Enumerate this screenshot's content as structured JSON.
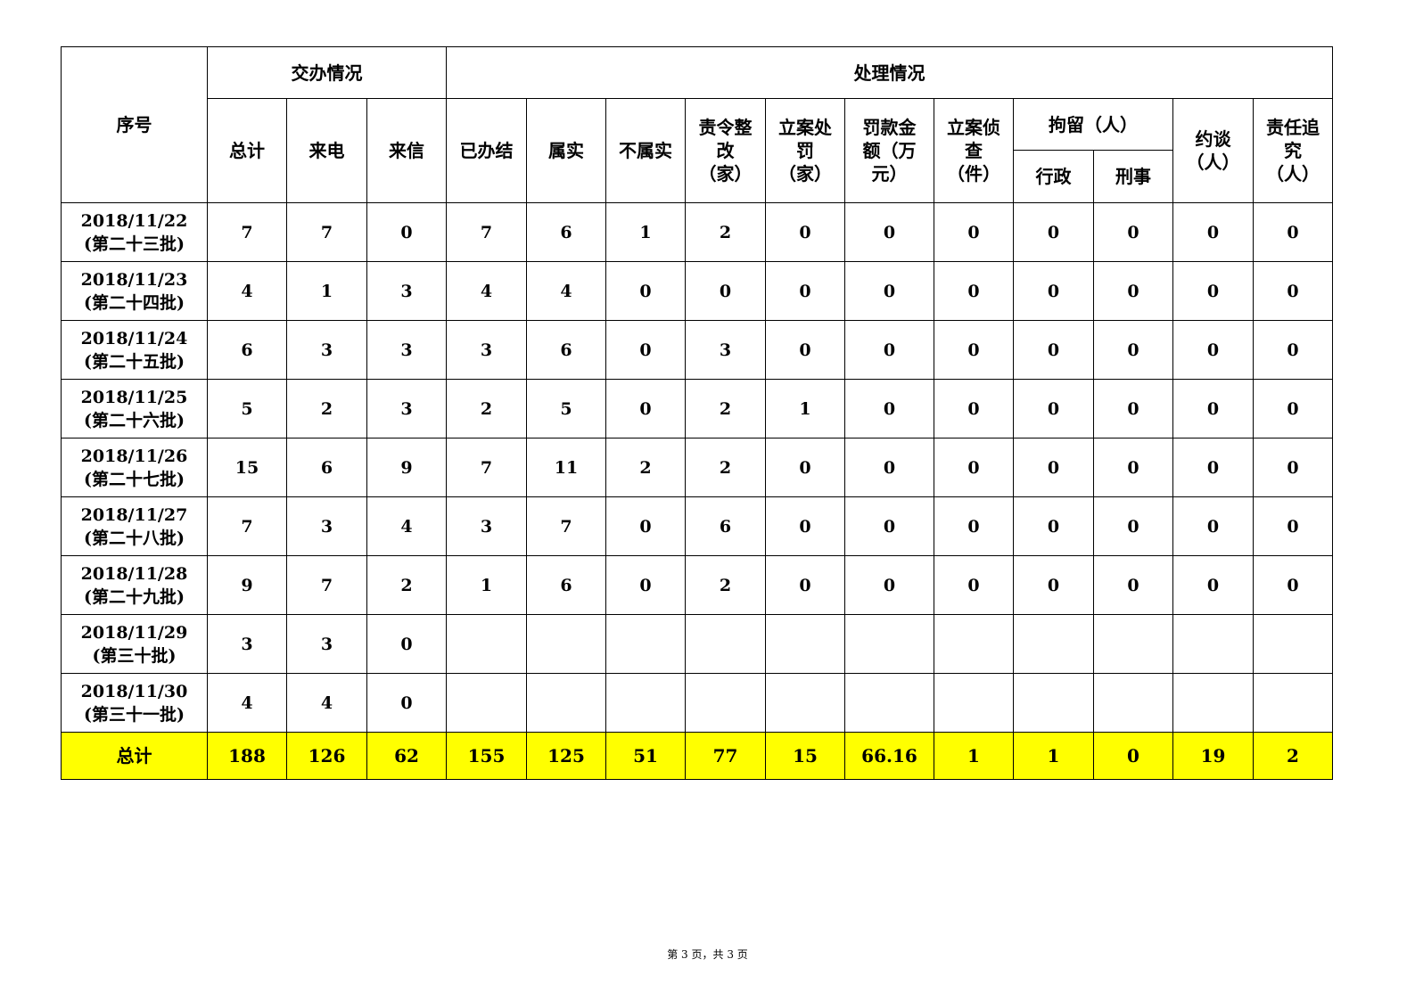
{
  "header": {
    "seq": "序号",
    "assigned_group": "交办情况",
    "handling_group": "处理情况",
    "detention_group": "拘留（人）",
    "columns": {
      "total": "总计",
      "phone": "来电",
      "letter": "来信",
      "completed": "已办结",
      "true": "属实",
      "not_true": "不属实",
      "rectify": "责令整改（家）",
      "punish": "立案处罚（家）",
      "fine": "罚款金额（万元）",
      "investigate": "立案侦查（件）",
      "admin": "行政",
      "criminal": "刑事",
      "interview": "约谈（人）",
      "accountability": "责任追究（人）"
    }
  },
  "rows": [
    {
      "date": "2018/11/22",
      "batch": "(第二十三批)",
      "values": [
        "7",
        "7",
        "0",
        "7",
        "6",
        "1",
        "2",
        "0",
        "0",
        "0",
        "0",
        "0",
        "0",
        "0"
      ]
    },
    {
      "date": "2018/11/23",
      "batch": "(第二十四批)",
      "values": [
        "4",
        "1",
        "3",
        "4",
        "4",
        "0",
        "0",
        "0",
        "0",
        "0",
        "0",
        "0",
        "0",
        "0"
      ]
    },
    {
      "date": "2018/11/24",
      "batch": "(第二十五批)",
      "values": [
        "6",
        "3",
        "3",
        "3",
        "6",
        "0",
        "3",
        "0",
        "0",
        "0",
        "0",
        "0",
        "0",
        "0"
      ]
    },
    {
      "date": "2018/11/25",
      "batch": "(第二十六批)",
      "values": [
        "5",
        "2",
        "3",
        "2",
        "5",
        "0",
        "2",
        "1",
        "0",
        "0",
        "0",
        "0",
        "0",
        "0"
      ]
    },
    {
      "date": "2018/11/26",
      "batch": "(第二十七批)",
      "values": [
        "15",
        "6",
        "9",
        "7",
        "11",
        "2",
        "2",
        "0",
        "0",
        "0",
        "0",
        "0",
        "0",
        "0"
      ]
    },
    {
      "date": "2018/11/27",
      "batch": "(第二十八批)",
      "values": [
        "7",
        "3",
        "4",
        "3",
        "7",
        "0",
        "6",
        "0",
        "0",
        "0",
        "0",
        "0",
        "0",
        "0"
      ]
    },
    {
      "date": "2018/11/28",
      "batch": "(第二十九批)",
      "values": [
        "9",
        "7",
        "2",
        "1",
        "6",
        "0",
        "2",
        "0",
        "0",
        "0",
        "0",
        "0",
        "0",
        "0"
      ]
    },
    {
      "date": "2018/11/29",
      "batch": "(第三十批)",
      "values": [
        "3",
        "3",
        "0",
        "",
        "",
        "",
        "",
        "",
        "",
        "",
        "",
        "",
        "",
        ""
      ]
    },
    {
      "date": "2018/11/30",
      "batch": "(第三十一批)",
      "values": [
        "4",
        "4",
        "0",
        "",
        "",
        "",
        "",
        "",
        "",
        "",
        "",
        "",
        "",
        ""
      ]
    }
  ],
  "total_row": {
    "label": "总计",
    "values": [
      "188",
      "126",
      "62",
      "155",
      "125",
      "51",
      "77",
      "15",
      "66.16",
      "1",
      "1",
      "0",
      "19",
      "2"
    ]
  },
  "colors": {
    "total_highlight": "#ffff00"
  },
  "footer": "第 3 页，共 3 页"
}
